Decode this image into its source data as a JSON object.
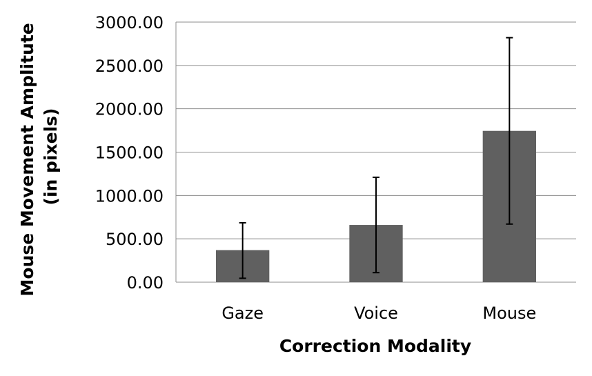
{
  "chart_data": {
    "type": "bar",
    "title": "",
    "xlabel": "Correction Modality",
    "ylabel_lines": [
      "Mouse Movement Amplitute",
      "(in pixels)"
    ],
    "categories": [
      "Gaze",
      "Voice",
      "Mouse"
    ],
    "series": [
      {
        "values": [
          370,
          660,
          1745
        ],
        "error_low": [
          45,
          110,
          670
        ],
        "error_high": [
          685,
          1210,
          2820
        ],
        "color": "#606060"
      }
    ],
    "ylim": [
      0,
      3000
    ],
    "yticks": [
      0,
      500,
      1000,
      1500,
      2000,
      2500,
      3000
    ],
    "ytick_labels": [
      "0.00",
      "500.00",
      "1000.00",
      "1500.00",
      "2000.00",
      "2500.00",
      "3000.00"
    ],
    "grid": true,
    "legend": "none"
  }
}
